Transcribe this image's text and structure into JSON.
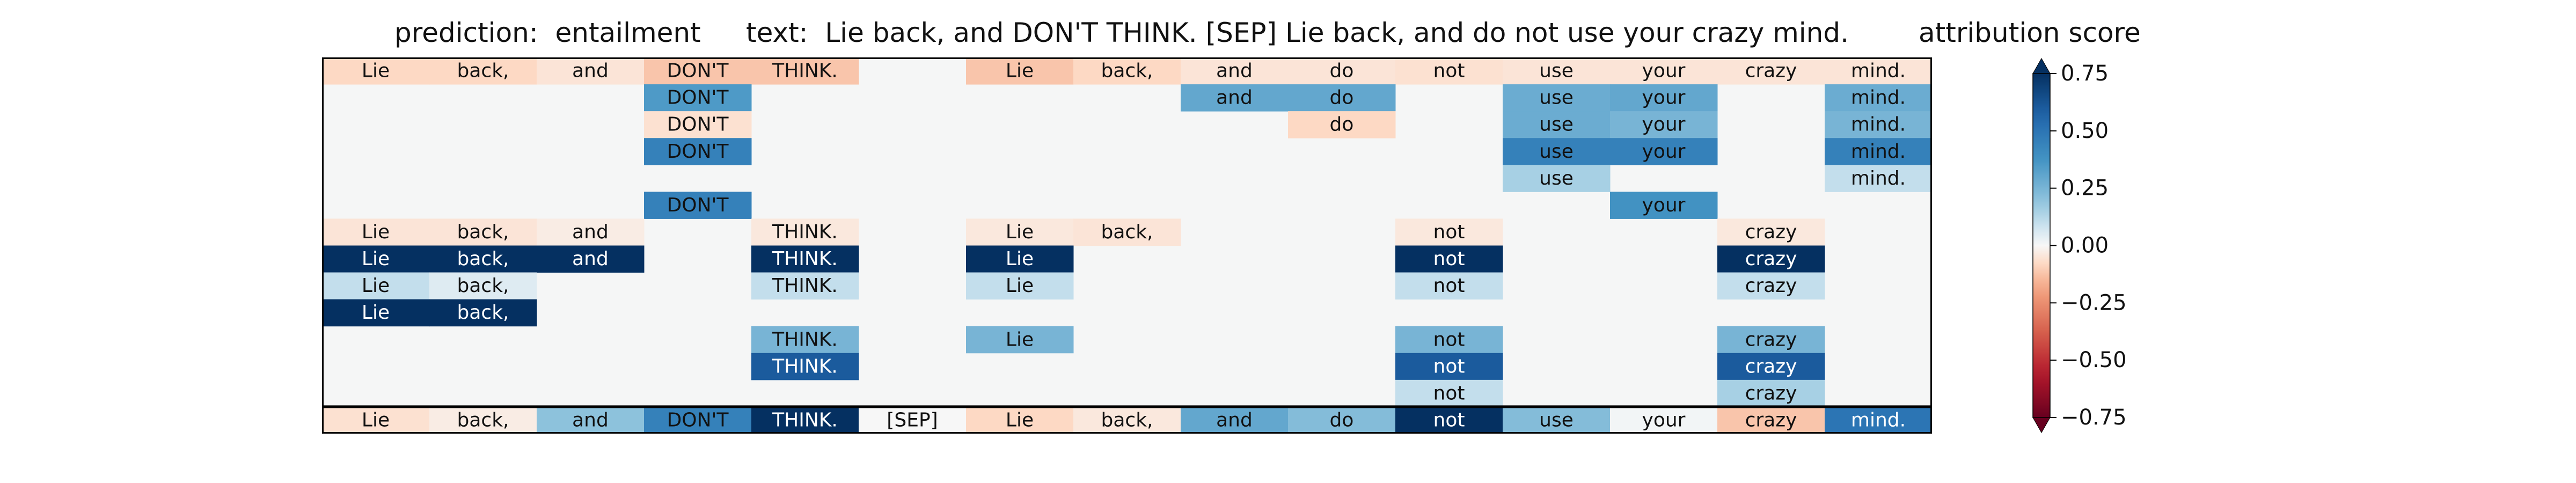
{
  "header": {
    "prediction": "prediction:  entailment",
    "text": "text:  Lie back, and DON'T THINK. [SEP] Lie back, and do not use your crazy mind.",
    "attribution_title": "attribution score"
  },
  "chart_data": {
    "type": "heatmap",
    "tokens": [
      "Lie",
      "back,",
      "and",
      "DON'T",
      "THINK.",
      "[SEP]",
      "Lie",
      "back,",
      "and",
      "do",
      "not",
      "use",
      "your",
      "crazy",
      "mind."
    ],
    "rows": [
      [
        -0.08,
        -0.08,
        -0.05,
        -0.12,
        -0.12,
        null,
        -0.12,
        -0.08,
        -0.05,
        -0.05,
        -0.06,
        -0.05,
        -0.05,
        -0.05,
        -0.05
      ],
      [
        null,
        null,
        null,
        0.35,
        null,
        null,
        null,
        null,
        0.3,
        0.3,
        null,
        0.28,
        0.3,
        null,
        0.28
      ],
      [
        null,
        null,
        null,
        -0.06,
        null,
        null,
        null,
        null,
        null,
        -0.08,
        null,
        0.28,
        0.25,
        null,
        0.25
      ],
      [
        null,
        null,
        null,
        0.45,
        null,
        null,
        null,
        null,
        null,
        null,
        null,
        0.45,
        0.45,
        null,
        0.45
      ],
      [
        null,
        null,
        null,
        null,
        null,
        null,
        null,
        null,
        null,
        null,
        null,
        0.15,
        null,
        null,
        0.1
      ],
      [
        null,
        null,
        null,
        0.45,
        null,
        null,
        null,
        null,
        null,
        null,
        null,
        null,
        0.38,
        null,
        null
      ],
      [
        -0.05,
        -0.05,
        -0.03,
        null,
        -0.04,
        null,
        -0.04,
        -0.05,
        null,
        null,
        -0.04,
        null,
        null,
        -0.04,
        null
      ],
      [
        0.85,
        0.85,
        0.85,
        null,
        0.85,
        null,
        0.85,
        null,
        null,
        null,
        0.85,
        null,
        null,
        0.85,
        null
      ],
      [
        0.1,
        0.05,
        null,
        null,
        0.1,
        null,
        0.1,
        null,
        null,
        null,
        0.1,
        null,
        null,
        0.1,
        null
      ],
      [
        0.85,
        0.85,
        null,
        null,
        null,
        null,
        null,
        null,
        null,
        null,
        null,
        null,
        null,
        null,
        null
      ],
      [
        null,
        null,
        null,
        null,
        0.25,
        null,
        0.25,
        null,
        null,
        null,
        0.25,
        null,
        null,
        0.25,
        null
      ],
      [
        null,
        null,
        null,
        null,
        0.6,
        null,
        null,
        null,
        null,
        null,
        0.6,
        null,
        null,
        0.6,
        null
      ],
      [
        null,
        null,
        null,
        null,
        null,
        null,
        null,
        null,
        null,
        null,
        0.1,
        null,
        null,
        0.15,
        null
      ]
    ],
    "summary_row": [
      -0.06,
      -0.03,
      0.2,
      0.45,
      1.0,
      0.0,
      -0.08,
      -0.04,
      0.3,
      0.22,
      0.85,
      0.22,
      0.01,
      -0.12,
      0.5
    ],
    "colorbar": {
      "label": "attribution score",
      "range": [
        -0.75,
        0.75
      ],
      "ticks": [
        0.75,
        0.5,
        0.25,
        0.0,
        -0.25,
        -0.5,
        -0.75
      ],
      "tick_labels": [
        "0.75",
        "0.50",
        "0.25",
        "0.00",
        "−0.25",
        "−0.50",
        "−0.75"
      ],
      "colormap": "RdBu",
      "extend": "both"
    },
    "background_color": "#f5f6f6"
  }
}
